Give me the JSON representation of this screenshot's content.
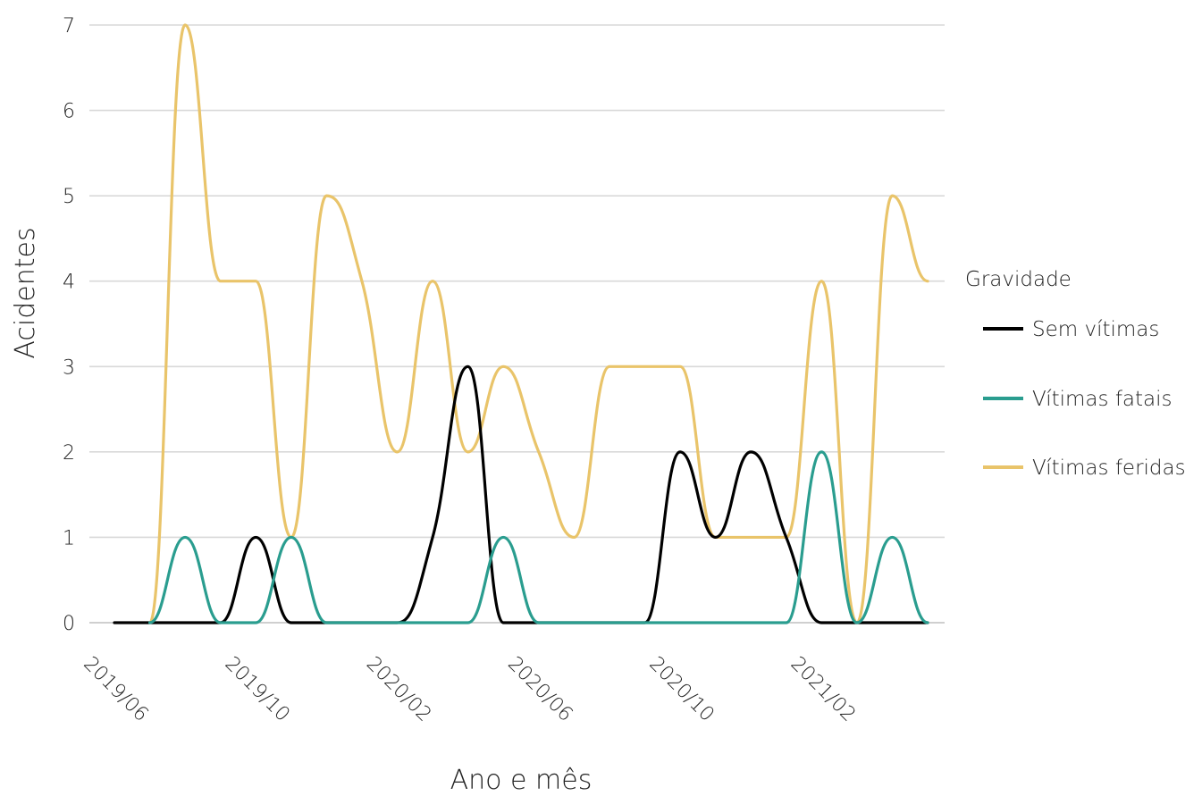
{
  "chart_data": {
    "type": "line",
    "xlabel": "Ano e mês",
    "ylabel": "Acidentes",
    "ylim": [
      0,
      7
    ],
    "yticks": [
      0,
      1,
      2,
      3,
      4,
      5,
      6,
      7
    ],
    "grid": true,
    "x": [
      "2019/05",
      "2019/06",
      "2019/07",
      "2019/08",
      "2019/09",
      "2019/10",
      "2019/11",
      "2019/12",
      "2020/01",
      "2020/02",
      "2020/03",
      "2020/04",
      "2020/05",
      "2020/06",
      "2020/07",
      "2020/08",
      "2020/09",
      "2020/10",
      "2020/11",
      "2020/12",
      "2021/01",
      "2021/02",
      "2021/03",
      "2021/04"
    ],
    "xtick_labels": [
      "2019/06",
      "2019/10",
      "2020/02",
      "2020/06",
      "2020/10",
      "2021/02"
    ],
    "legend": {
      "title": "Gravidade",
      "position": "right"
    },
    "series": [
      {
        "name": "Sem vítimas",
        "color": "#000000",
        "values": [
          0,
          0,
          0,
          0,
          1,
          0,
          0,
          0,
          0,
          1,
          3,
          0,
          0,
          0,
          0,
          0,
          2,
          1,
          2,
          1,
          0,
          0,
          0,
          0
        ],
        "defined_from": 0
      },
      {
        "name": "Vítimas fatais",
        "color": "#2a9d8f",
        "values": [
          null,
          0,
          1,
          0,
          0,
          1,
          0,
          0,
          0,
          0,
          0,
          1,
          0,
          0,
          0,
          0,
          0,
          0,
          0,
          0,
          2,
          0,
          1,
          0
        ],
        "defined_from": 1
      },
      {
        "name": "Vítimas feridas",
        "color": "#e9c46a",
        "values": [
          null,
          0,
          7,
          4,
          4,
          1,
          5,
          4,
          2,
          4,
          2,
          3,
          2,
          1,
          3,
          3,
          3,
          1,
          1,
          1,
          4,
          0,
          5,
          4
        ],
        "defined_from": 1
      }
    ]
  }
}
